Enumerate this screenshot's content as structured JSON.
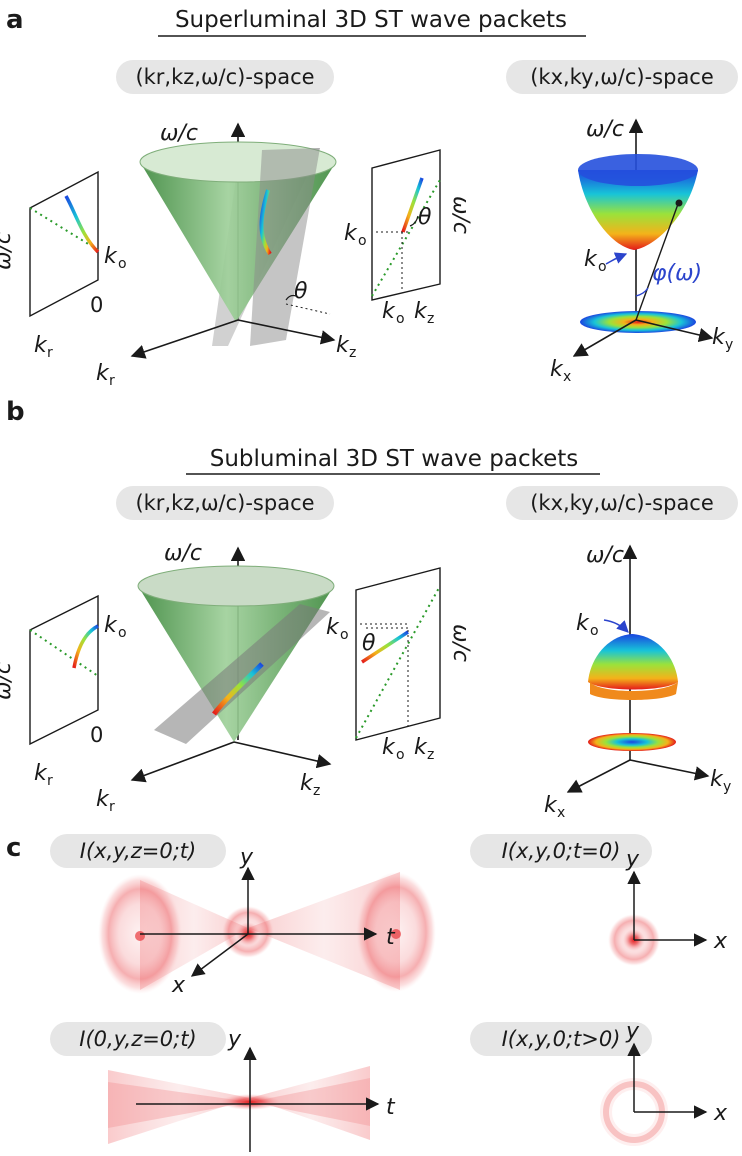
{
  "panels": [
    {
      "letter": "a",
      "title": "Superluminal 3D ST wave packets",
      "space_left": "(kr,kz,ω/c)-space",
      "space_right": "(kx,ky,ω/c)-space",
      "labels": {
        "omega_c": "ω/c",
        "kr": "k",
        "kr_sub": "r",
        "kz": "k",
        "kz_sub": "z",
        "kx": "k",
        "kx_sub": "x",
        "ky": "k",
        "ky_sub": "y",
        "ko": "k",
        "ko_sub": "o",
        "zero": "0",
        "theta": "θ",
        "phi": "φ(ω)"
      }
    },
    {
      "letter": "b",
      "title": "Subluminal 3D ST wave packets",
      "space_left": "(kr,kz,ω/c)-space",
      "space_right": "(kx,ky,ω/c)-space",
      "labels": {
        "omega_c": "ω/c",
        "kr": "k",
        "kr_sub": "r",
        "kz": "k",
        "kz_sub": "z",
        "kx": "k",
        "kx_sub": "x",
        "ky": "k",
        "ky_sub": "y",
        "ko": "k",
        "ko_sub": "o",
        "zero": "0",
        "theta": "θ"
      }
    },
    {
      "letter": "c",
      "intensity_labels": [
        "I(x,y,z=0;t)",
        "I(x,y,0;t=0)",
        "I(0,y,z=0;t)",
        "I(x,y,0;t>0)"
      ],
      "axis_labels": {
        "x": "x",
        "y": "y",
        "t": "t"
      }
    }
  ],
  "colors": {
    "cone": "#5aa35a",
    "cone_light": "#cfe6c9",
    "plane": "#808080",
    "dotted_green": "#2a9a2a",
    "intensity_red": "#e8383c",
    "phi_blue": "#2b44cc"
  }
}
